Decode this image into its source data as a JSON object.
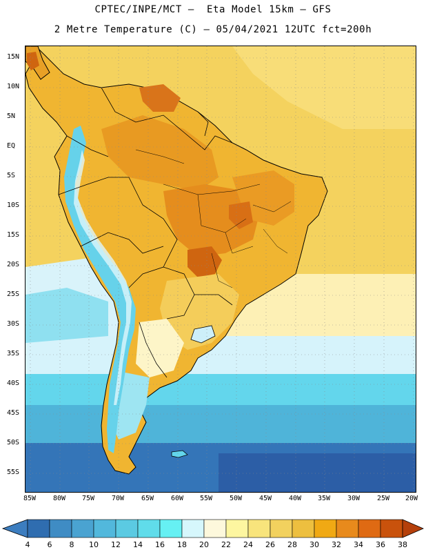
{
  "title": {
    "line1": "CPTEC/INPE/MCT –  Eta Model 15km – GFS",
    "line2": "2 Metre Temperature (C) – 05/04/2021 12UTC fct=200h"
  },
  "lat_labels": [
    "15N",
    "10N",
    "5N",
    "EQ",
    "5S",
    "10S",
    "15S",
    "20S",
    "25S",
    "30S",
    "35S",
    "40S",
    "45S",
    "50S",
    "55S"
  ],
  "lon_labels": [
    "85W",
    "80W",
    "75W",
    "70W",
    "65W",
    "60W",
    "55W",
    "50W",
    "45W",
    "40W",
    "35W",
    "30W",
    "25W",
    "20W"
  ],
  "colorbar": {
    "labels": [
      "4",
      "6",
      "8",
      "10",
      "12",
      "14",
      "16",
      "18",
      "20",
      "22",
      "24",
      "26",
      "28",
      "30",
      "32",
      "34",
      "36",
      "38"
    ],
    "low_color": "#3c7dbf",
    "high_color": "#b5400b",
    "colors": [
      "#2f6db0",
      "#3f8cc4",
      "#4aa3d1",
      "#52b8dc",
      "#5bcae2",
      "#60dcea",
      "#66f0f3",
      "#d6f7fc",
      "#fdf8dc",
      "#fdf6a0",
      "#f8e47c",
      "#f2d15e",
      "#edbf3f",
      "#f0a914",
      "#e88a1c",
      "#df6a13",
      "#c9520c"
    ]
  },
  "palette": {
    "ocean_deep": "#2d62a8",
    "ocean_mid": "#3f8cc4",
    "ocean_cyan": "#5bcae2",
    "ocean_light": "#cdeff9",
    "ocean_cream": "#fdf5c8",
    "ocean_warm": "#f7df7a",
    "land_hot": "#e89a22",
    "land_warm": "#f0b531",
    "land_mild": "#f4cd5a",
    "andes_cold": "#66d2ea",
    "andes_snow": "#dff6fb",
    "hot_spot": "#cf6510",
    "coast": "#000000",
    "grid": "#888888"
  }
}
